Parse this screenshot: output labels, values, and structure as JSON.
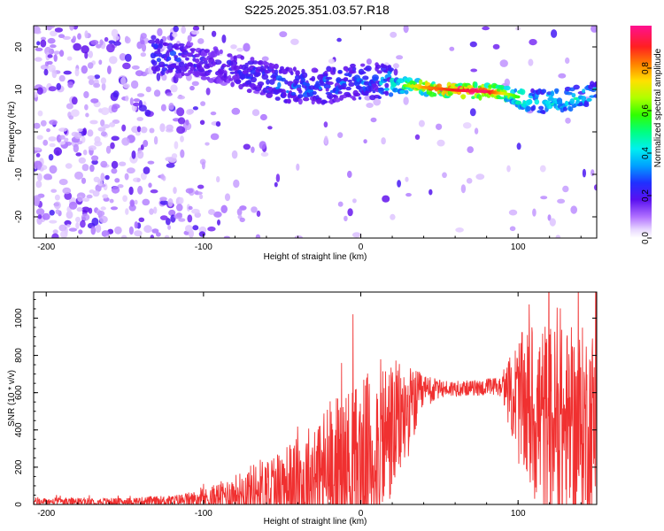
{
  "title": "S225.2025.351.03.57.R18",
  "chart_data": [
    {
      "type": "heatmap",
      "xlabel": "Height of straight line (km)",
      "ylabel": "Frequency (Hz)",
      "xlim": [
        -208,
        150
      ],
      "ylim": [
        -25,
        25
      ],
      "xticks": [
        -200,
        -100,
        0,
        100
      ],
      "yticks": [
        20,
        10,
        0,
        -10,
        -20
      ],
      "colorbar": {
        "label": "Normalized spectral amplitude",
        "range": [
          0,
          1
        ],
        "ticks": [
          "0.0",
          "0.2",
          "0.4",
          "0.6",
          "0.8"
        ],
        "tick_values": [
          0,
          0.2,
          0.4,
          0.6,
          0.8
        ]
      },
      "ridge": [
        {
          "x": -130,
          "f": 17.5,
          "amp": 0.35
        },
        {
          "x": -110,
          "f": 17.0,
          "amp": 0.3
        },
        {
          "x": -90,
          "f": 15.5,
          "amp": 0.25
        },
        {
          "x": -70,
          "f": 13.5,
          "amp": 0.3
        },
        {
          "x": -50,
          "f": 11.0,
          "amp": 0.35
        },
        {
          "x": -30,
          "f": 10.5,
          "amp": 0.35
        },
        {
          "x": -10,
          "f": 11.5,
          "amp": 0.35
        },
        {
          "x": 10,
          "f": 12.0,
          "amp": 0.4
        },
        {
          "x": 25,
          "f": 11.0,
          "amp": 0.6
        },
        {
          "x": 40,
          "f": 10.5,
          "amp": 0.85
        },
        {
          "x": 60,
          "f": 9.8,
          "amp": 0.95
        },
        {
          "x": 80,
          "f": 9.5,
          "amp": 1.0
        },
        {
          "x": 95,
          "f": 8.8,
          "amp": 0.7
        },
        {
          "x": 110,
          "f": 7.0,
          "amp": 0.45
        },
        {
          "x": 130,
          "f": 7.5,
          "amp": 0.5
        },
        {
          "x": 150,
          "f": 9.0,
          "amp": 0.45
        }
      ]
    },
    {
      "type": "line",
      "xlabel": "Height of straight line (km)",
      "ylabel": "SNR (10 * v/v)",
      "xlim": [
        -208,
        150
      ],
      "ylim": [
        0,
        1140
      ],
      "xticks": [
        -200,
        -100,
        0,
        100
      ],
      "yticks": [
        0,
        200,
        400,
        600,
        800,
        1000
      ],
      "color": "#f03030",
      "envelope": [
        {
          "x": -208,
          "base": 15,
          "spread": 20
        },
        {
          "x": -150,
          "base": 15,
          "spread": 20
        },
        {
          "x": -120,
          "base": 20,
          "spread": 30
        },
        {
          "x": -100,
          "base": 30,
          "spread": 50
        },
        {
          "x": -80,
          "base": 60,
          "spread": 100
        },
        {
          "x": -60,
          "base": 90,
          "spread": 180
        },
        {
          "x": -40,
          "base": 110,
          "spread": 250
        },
        {
          "x": -20,
          "base": 170,
          "spread": 400
        },
        {
          "x": 0,
          "base": 220,
          "spread": 450
        },
        {
          "x": 15,
          "base": 350,
          "spread": 450
        },
        {
          "x": 30,
          "base": 500,
          "spread": 250
        },
        {
          "x": 40,
          "base": 600,
          "spread": 100
        },
        {
          "x": 50,
          "base": 620,
          "spread": 50
        },
        {
          "x": 70,
          "base": 625,
          "spread": 40
        },
        {
          "x": 90,
          "base": 630,
          "spread": 60
        },
        {
          "x": 100,
          "base": 560,
          "spread": 350
        },
        {
          "x": 115,
          "base": 450,
          "spread": 550
        },
        {
          "x": 130,
          "base": 400,
          "spread": 550
        },
        {
          "x": 150,
          "base": 420,
          "spread": 550
        }
      ]
    }
  ]
}
